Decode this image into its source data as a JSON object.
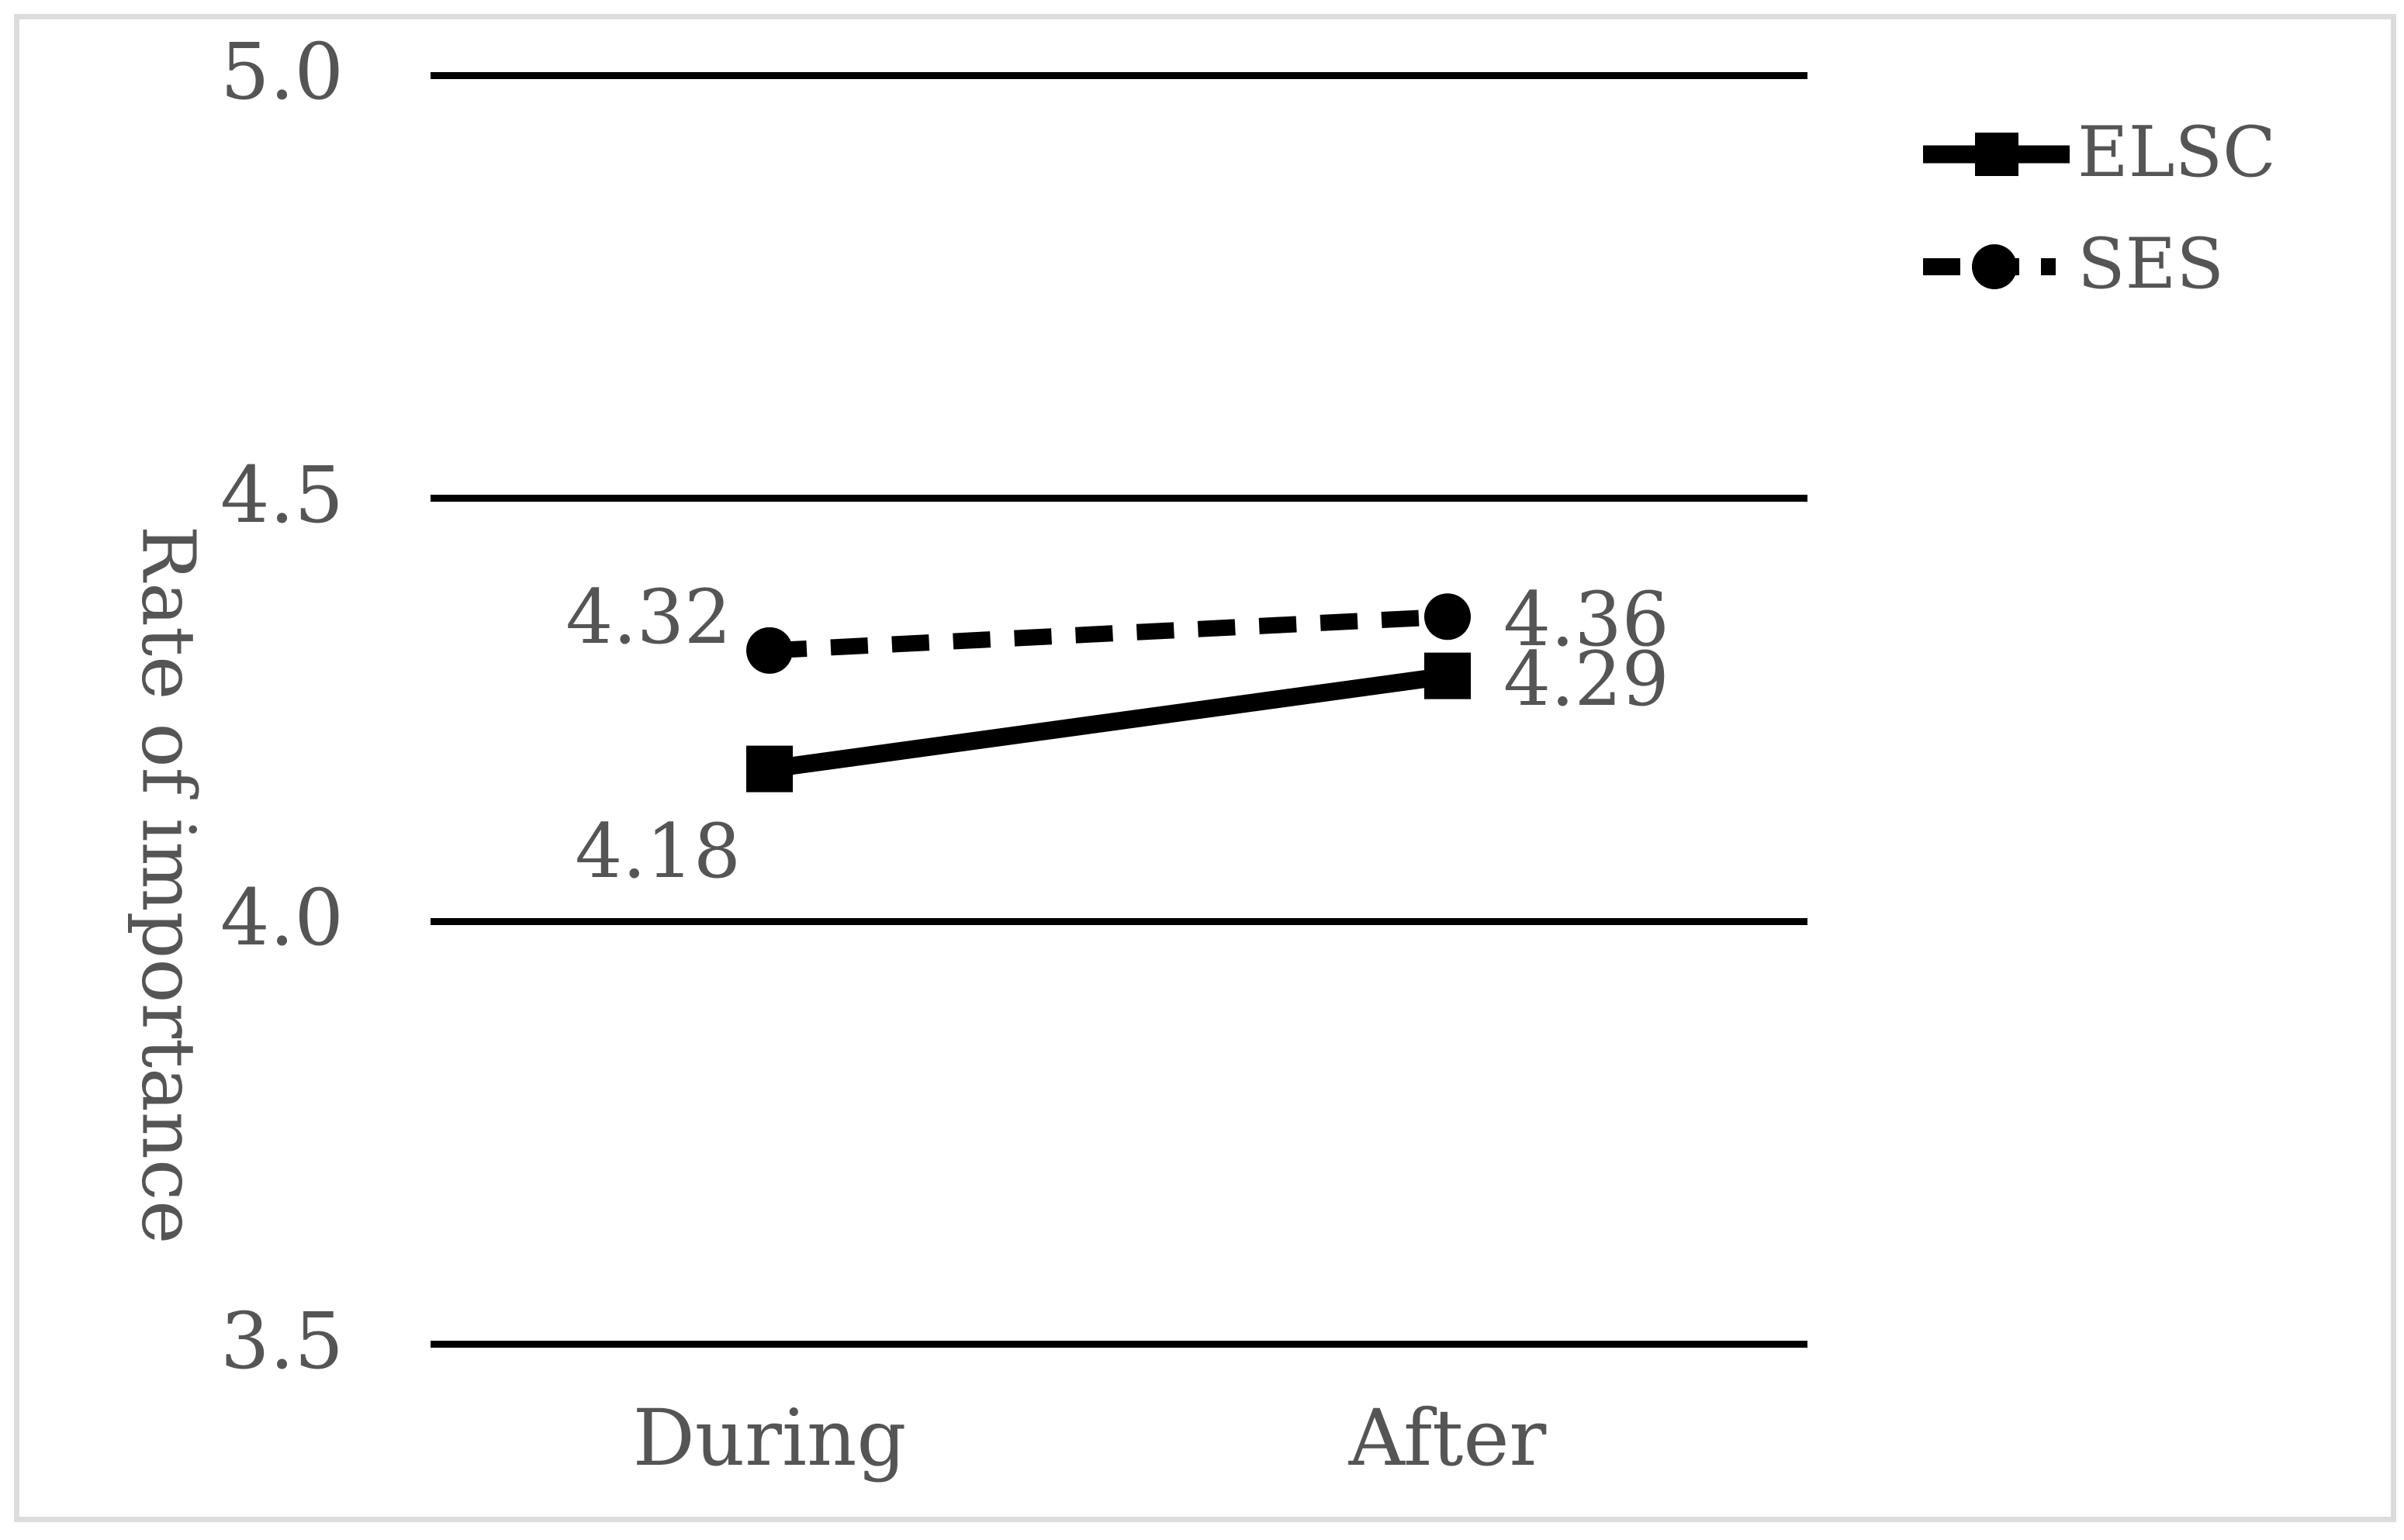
{
  "figure": {
    "background_color": "#ffffff",
    "frame_color": "#dcdcdc",
    "text_color": "#555555",
    "series_color": "#000000"
  },
  "chart_data": {
    "type": "line",
    "title": "",
    "xlabel": "",
    "ylabel": "Rate of importance",
    "categories": [
      "During",
      "After"
    ],
    "series": [
      {
        "name": "ELSC",
        "values": [
          4.18,
          4.29
        ],
        "labels": [
          "4.18",
          "4.29"
        ],
        "label_pos": [
          "below-left",
          "right"
        ],
        "marker": "square",
        "line_style": "solid",
        "color": "#000000"
      },
      {
        "name": "SES",
        "values": [
          4.32,
          4.36
        ],
        "labels": [
          "4.32",
          "4.36"
        ],
        "label_pos": [
          "above-left",
          "right"
        ],
        "marker": "circle",
        "line_style": "dashed",
        "color": "#000000"
      }
    ],
    "y_ticks": [
      "5.0",
      "4.5",
      "4.0",
      "3.5"
    ],
    "y_tick_values": [
      5.0,
      4.5,
      4.0,
      3.5
    ],
    "ylim": [
      3.5,
      5.0
    ],
    "grid": "horizontal",
    "legend_position": "top-right"
  }
}
